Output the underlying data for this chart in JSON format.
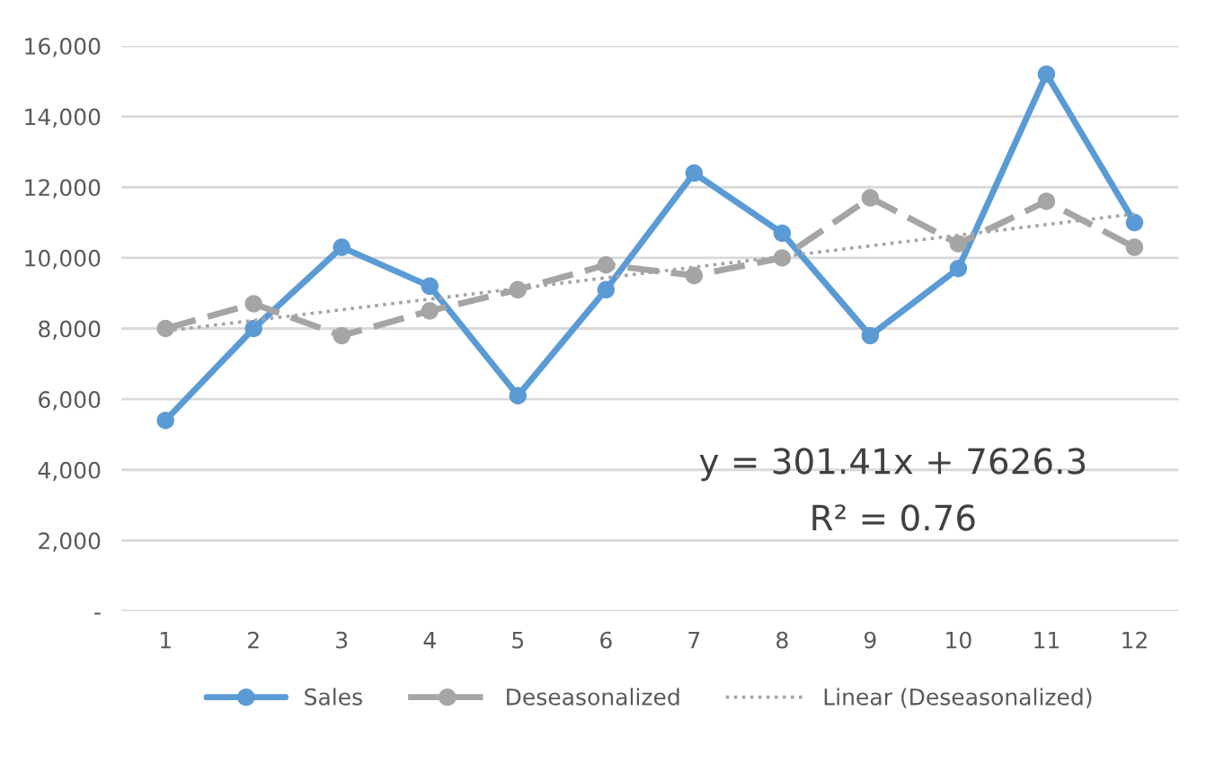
{
  "chart_data": {
    "type": "line",
    "x": [
      1,
      2,
      3,
      4,
      5,
      6,
      7,
      8,
      9,
      10,
      11,
      12
    ],
    "series": [
      {
        "name": "Sales",
        "color": "#5b9bd5",
        "marker": "circle",
        "line_style": "solid",
        "values": [
          5400,
          8000,
          10300,
          9200,
          6100,
          9100,
          12400,
          10700,
          7800,
          9700,
          15200,
          11000
        ]
      },
      {
        "name": "Deseasonalized",
        "color": "#a5a5a5",
        "marker": "circle",
        "line_style": "dashed",
        "values": [
          8000,
          8700,
          7800,
          8500,
          9100,
          9800,
          9500,
          10000,
          11700,
          10400,
          11600,
          10300
        ]
      },
      {
        "name": "Linear (Deseasonalized)",
        "color": "#a5a5a5",
        "marker": "none",
        "line_style": "dotted",
        "x": [
          1,
          12
        ],
        "values": [
          7928,
          11243
        ]
      }
    ],
    "xlim": [
      0.5,
      12.5
    ],
    "xticks": [
      1,
      2,
      3,
      4,
      5,
      6,
      7,
      8,
      9,
      10,
      11,
      12
    ],
    "ylim": [
      0,
      16000
    ],
    "yticks": [
      {
        "value": 0,
        "label": "-"
      },
      {
        "value": 2000,
        "label": "2,000"
      },
      {
        "value": 4000,
        "label": "4,000"
      },
      {
        "value": 6000,
        "label": "6,000"
      },
      {
        "value": 8000,
        "label": "8,000"
      },
      {
        "value": 10000,
        "label": "10,000"
      },
      {
        "value": 12000,
        "label": "12,000"
      },
      {
        "value": 14000,
        "label": "14,000"
      },
      {
        "value": 16000,
        "label": "16,000"
      }
    ],
    "annotations": [
      "y = 301.41x + 7626.3",
      "R² = 0.76"
    ],
    "grid": "y",
    "legend": "bottom"
  }
}
